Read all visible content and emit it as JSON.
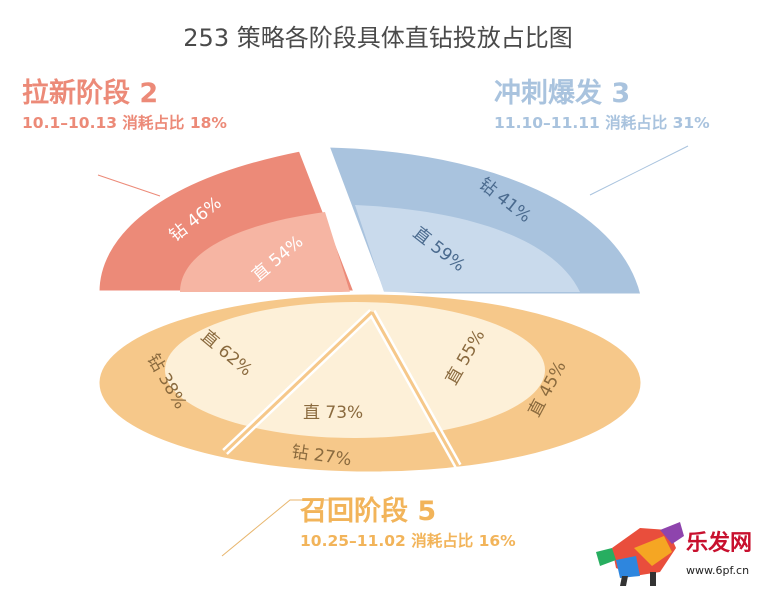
{
  "chart_data": {
    "type": "pie",
    "title": "253 策略各阶段具体直钻投放占比图",
    "phases": [
      {
        "name": "拉新阶段 2",
        "subtitle": "10.1–10.13 消耗占比 18%",
        "share": 18,
        "color": "#ec8a78",
        "segments": [
          {
            "label": "钻 46%",
            "value": 46
          },
          {
            "label": "直 54%",
            "value": 54
          }
        ]
      },
      {
        "name": "冲刺爆发 3",
        "subtitle": "11.10–11.11 消耗占比 31%",
        "share": 31,
        "color": "#a9c3de",
        "segments": [
          {
            "label": "钻 41%",
            "value": 41
          },
          {
            "label": "直 59%",
            "value": 59
          }
        ]
      },
      {
        "name": "召回阶段 5",
        "subtitle": "10.25–11.02 消耗占比 16%",
        "share": 16,
        "color": "#f6c88a",
        "segments": [
          {
            "label": "直 62%",
            "value": 62
          },
          {
            "label": "钻 38%",
            "value": 38
          },
          {
            "label": "直 73%",
            "value": 73
          },
          {
            "label": "钻 27%",
            "value": 27
          },
          {
            "label": "直 55%",
            "value": 55
          },
          {
            "label": "直 45%",
            "value": 45
          }
        ]
      }
    ]
  },
  "watermark": {
    "brand": "乐发网",
    "url": "www.6pf.cn"
  }
}
